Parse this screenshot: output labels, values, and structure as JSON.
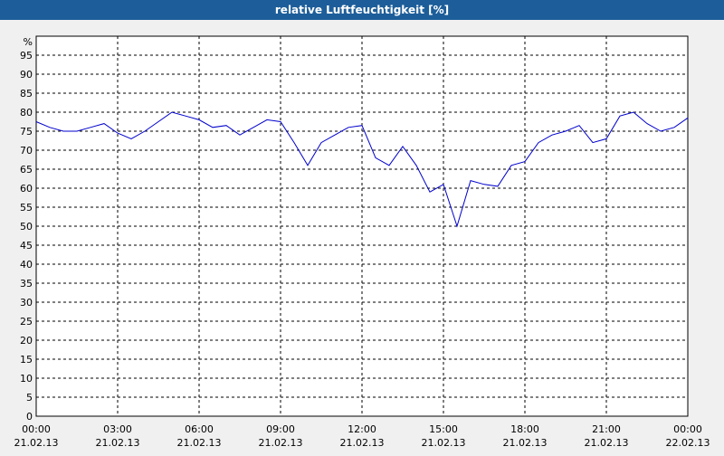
{
  "chart_data": {
    "type": "line",
    "title": "relative Luftfeuchtigkeit [%]",
    "y_unit": "%",
    "x": [
      0,
      0.5,
      1,
      1.5,
      2,
      2.5,
      3,
      3.5,
      4,
      4.5,
      5,
      5.5,
      6,
      6.5,
      7,
      7.5,
      8,
      8.5,
      9,
      9.5,
      10,
      10.5,
      11,
      11.5,
      12,
      12.5,
      13,
      13.5,
      14,
      14.5,
      15,
      15.5,
      16,
      16.5,
      17,
      17.5,
      18,
      18.5,
      19,
      19.5,
      20,
      20.5,
      21,
      21.5,
      22,
      22.5,
      23,
      23.5,
      24
    ],
    "series": [
      {
        "name": "relative Luftfeuchtigkeit",
        "color": "#0000cc",
        "values": [
          77.5,
          76,
          75,
          75,
          76,
          77,
          74.5,
          73,
          75,
          77.5,
          80,
          79,
          78,
          76,
          76.5,
          74,
          76,
          78,
          77.5,
          72,
          66,
          72,
          74,
          76,
          76.5,
          68,
          66,
          71,
          66,
          59,
          61,
          50,
          62,
          61,
          60.5,
          66,
          67,
          72,
          74,
          75,
          76.5,
          72,
          73,
          79,
          80,
          77,
          75,
          76,
          78.5
        ]
      }
    ],
    "xlim": [
      0,
      24
    ],
    "xticks": [
      {
        "value": 0,
        "label": "00:00 21.02.13"
      },
      {
        "value": 3,
        "label": "03:00 21.02.13"
      },
      {
        "value": 6,
        "label": "06:00 21.02.13"
      },
      {
        "value": 9,
        "label": "09:00 21.02.13"
      },
      {
        "value": 12,
        "label": "12:00 21.02.13"
      },
      {
        "value": 15,
        "label": "15:00 21.02.13"
      },
      {
        "value": 18,
        "label": "18:00 21.02.13"
      },
      {
        "value": 21,
        "label": "21:00 21.02.13"
      },
      {
        "value": 24,
        "label": "00:00 22.02.13"
      }
    ],
    "ylim": [
      0,
      100
    ],
    "yticks": [
      0,
      5,
      10,
      15,
      20,
      25,
      30,
      35,
      40,
      45,
      50,
      55,
      60,
      65,
      70,
      75,
      80,
      85,
      90,
      95
    ],
    "grid": true
  }
}
